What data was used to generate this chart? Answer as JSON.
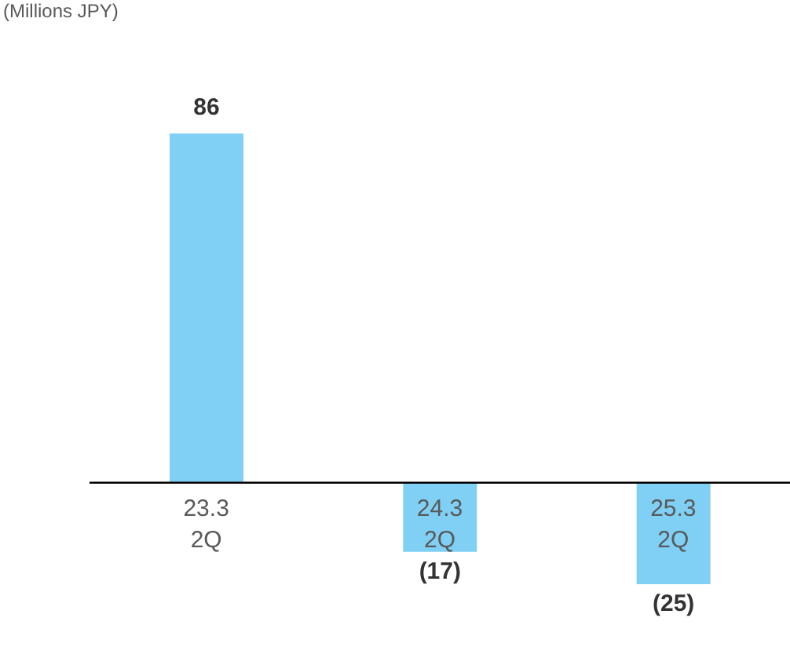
{
  "chart_data": {
    "type": "bar",
    "annotations": [
      "(Millions JPY)"
    ],
    "categories": [
      "23.3\n2Q",
      "24.3\n2Q",
      "25.3\n2Q"
    ],
    "values": [
      86,
      -17,
      -25
    ],
    "color": "#7fd0f4",
    "value_labels": [
      "86",
      "(17)",
      "(25)"
    ]
  }
}
